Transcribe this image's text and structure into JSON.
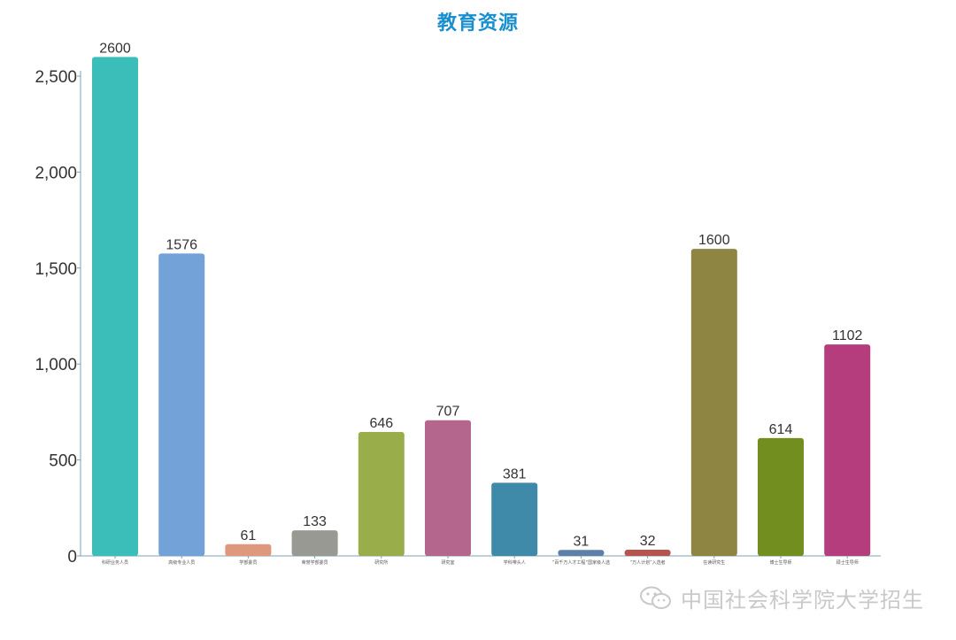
{
  "chart_data": {
    "type": "bar",
    "title": "教育资源",
    "xlabel": "",
    "ylabel": "",
    "ylim": [
      0,
      2500
    ],
    "y_ticks": [
      0,
      500,
      1000,
      1500,
      2000,
      2500
    ],
    "y_tick_labels": [
      "0",
      "500",
      "1,000",
      "1,500",
      "2,000",
      "2,500"
    ],
    "grid": false,
    "legend": "none",
    "categories": [
      "科研业务人员",
      "高级专业人员",
      "学部委员",
      "荣誉学部委员",
      "研究所",
      "研究室",
      "学科带头人",
      "“百千万人才工程”国家级人选",
      "“万人计划”入选者",
      "在读研究生",
      "博士生导师",
      "硕士生导师"
    ],
    "values": [
      2600,
      1576,
      61,
      133,
      646,
      707,
      381,
      31,
      32,
      1600,
      614,
      1102
    ],
    "colors": [
      "#3bbdb9",
      "#72a2d8",
      "#e0987c",
      "#999994",
      "#99ad4b",
      "#b5668c",
      "#3f8aa8",
      "#5e7faa",
      "#b85450",
      "#8f8542",
      "#718e1f",
      "#b53c7d"
    ]
  },
  "watermark": {
    "text": "中国社会科学院大学招生",
    "icon": "wechat-icon"
  },
  "style": {
    "title_color": "#1a8fd0",
    "axis_color": "#7aa3b3"
  }
}
